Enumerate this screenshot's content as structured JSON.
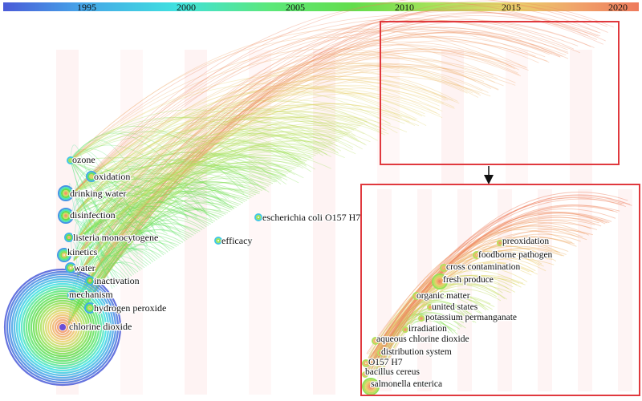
{
  "timeline": {
    "years": [
      "1995",
      "2000",
      "2005",
      "2010",
      "2015",
      "2020"
    ],
    "colors": [
      "#4a5bd8",
      "#45a3e8",
      "#3fe0e0",
      "#5ce87a",
      "#63dd4c",
      "#a8e25a",
      "#e9d36b",
      "#f0a46a",
      "#ee7a5c"
    ]
  },
  "keywords_main": [
    {
      "label": "ozone"
    },
    {
      "label": "oxidation"
    },
    {
      "label": "drinking water"
    },
    {
      "label": "disinfection"
    },
    {
      "label": "listeria monocytogene"
    },
    {
      "label": "kinetics"
    },
    {
      "label": "water"
    },
    {
      "label": "inactivation"
    },
    {
      "label": "mechanism"
    },
    {
      "label": "hydrogen peroxide"
    },
    {
      "label": "chlorine dioxide"
    },
    {
      "label": "efficacy"
    },
    {
      "label": "escherichia coli O157 H7"
    }
  ],
  "keywords_inset": [
    {
      "label": "preoxidation"
    },
    {
      "label": "foodborne pathogen"
    },
    {
      "label": "cross contamination"
    },
    {
      "label": "fresh produce"
    },
    {
      "label": "organic matter"
    },
    {
      "label": "united states"
    },
    {
      "label": "potassium permanganate"
    },
    {
      "label": "irradiation"
    },
    {
      "label": "aqueous chlorine dioxide"
    },
    {
      "label": "distribution system"
    },
    {
      "label": "O157 H7"
    },
    {
      "label": "bacillus cereus"
    },
    {
      "label": "salmonella enterica"
    }
  ],
  "colors": {
    "highlight_box": "#e0393e",
    "arrow": "#111111"
  }
}
